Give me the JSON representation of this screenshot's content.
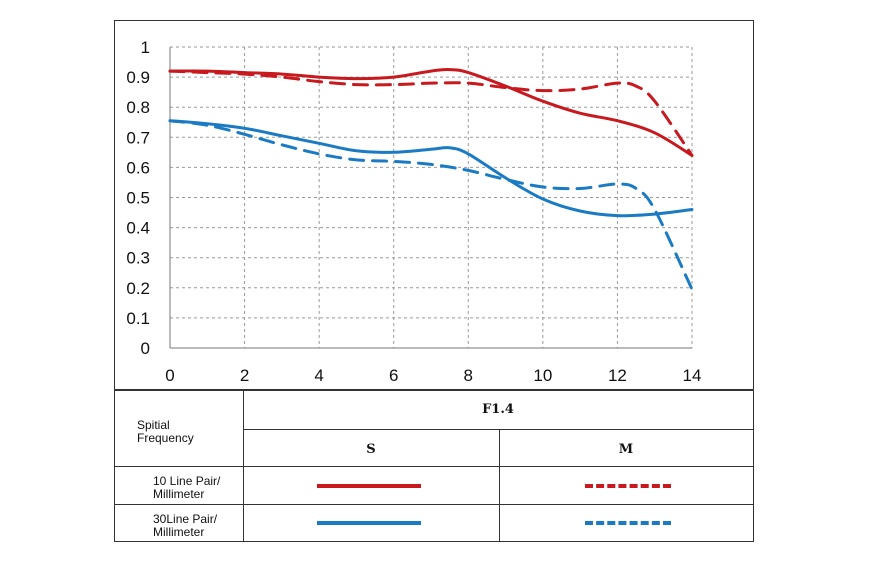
{
  "chart_data": {
    "type": "line",
    "xlim": [
      0,
      14
    ],
    "ylim": [
      0,
      1
    ],
    "x_ticks": [
      "0",
      "2",
      "4",
      "6",
      "8",
      "10",
      "12",
      "14"
    ],
    "y_ticks": [
      "0",
      "0.1",
      "0.2",
      "0.3",
      "0.4",
      "0.5",
      "0.6",
      "0.7",
      "0.8",
      "0.9",
      "1"
    ],
    "grid": true,
    "series": [
      {
        "id": "s10",
        "color": "#c8191f",
        "style": "solid",
        "x": [
          0,
          1,
          2,
          3,
          4,
          5,
          6,
          7,
          7.5,
          8,
          9,
          10,
          11,
          12,
          13,
          14
        ],
        "y": [
          0.92,
          0.92,
          0.915,
          0.91,
          0.9,
          0.895,
          0.9,
          0.92,
          0.925,
          0.915,
          0.87,
          0.82,
          0.78,
          0.755,
          0.715,
          0.64
        ]
      },
      {
        "id": "m10",
        "color": "#c8191f",
        "style": "dashed",
        "x": [
          0,
          1,
          2,
          3,
          4,
          5,
          6,
          7,
          8,
          9,
          10,
          11,
          12,
          12.5,
          13,
          14
        ],
        "y": [
          0.92,
          0.915,
          0.91,
          0.9,
          0.885,
          0.875,
          0.875,
          0.88,
          0.88,
          0.865,
          0.855,
          0.86,
          0.88,
          0.87,
          0.82,
          0.64
        ]
      },
      {
        "id": "s30",
        "color": "#1a7bc4",
        "style": "solid",
        "x": [
          0,
          1,
          2,
          3,
          4,
          5,
          6,
          7,
          7.5,
          8,
          9,
          10,
          11,
          12,
          13,
          14
        ],
        "y": [
          0.755,
          0.745,
          0.73,
          0.705,
          0.68,
          0.655,
          0.65,
          0.66,
          0.665,
          0.645,
          0.565,
          0.495,
          0.455,
          0.44,
          0.445,
          0.46
        ]
      },
      {
        "id": "m30",
        "color": "#1a7bc4",
        "style": "dashed",
        "x": [
          0,
          1,
          2,
          3,
          4,
          5,
          6,
          7,
          8,
          9,
          10,
          11,
          12,
          12.5,
          13,
          14
        ],
        "y": [
          0.755,
          0.74,
          0.71,
          0.675,
          0.645,
          0.625,
          0.62,
          0.61,
          0.59,
          0.56,
          0.535,
          0.53,
          0.545,
          0.53,
          0.46,
          0.195
        ]
      }
    ]
  },
  "legend_table": {
    "header_label": "Spitial\nFrequency",
    "aperture": "F1.4",
    "col_s": "S",
    "col_m": "M",
    "row1_label": "10 Line Pair/\nMillimeter",
    "row2_label": "30Line Pair/\nMillimeter",
    "red": "#c8191f",
    "blue": "#1a7bc4"
  }
}
